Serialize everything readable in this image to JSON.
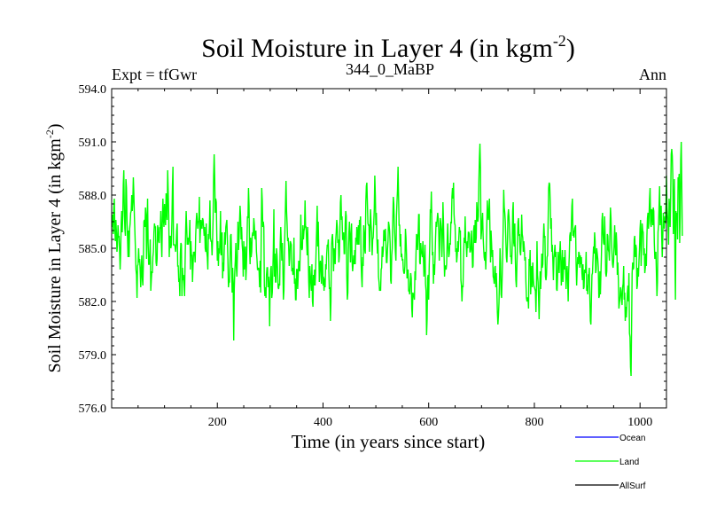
{
  "chart_data": {
    "type": "line",
    "title_main": "Soil Moisture in Layer 4 (in kgm",
    "title_sup": "-2",
    "title_close": ")",
    "subtitle_left": "Expt = tfGwr",
    "subtitle_center": "344_0_MaBP",
    "subtitle_right": "Ann",
    "xlabel": "Time (in years since start)",
    "ylabel_main": "Soil Moisture in Layer 4 (in kgm",
    "ylabel_sup": "-2",
    "ylabel_close": ")",
    "xlim": [
      0,
      1050
    ],
    "ylim": [
      576.0,
      594.0
    ],
    "xticks": [
      200,
      400,
      600,
      800,
      1000
    ],
    "yticks": [
      576.0,
      579.0,
      582.0,
      585.0,
      588.0,
      591.0,
      594.0
    ],
    "ytick_labels": [
      "576.0",
      "579.0",
      "582.0",
      "585.0",
      "588.0",
      "591.0",
      "594.0"
    ],
    "legend": [
      {
        "name": "Ocean",
        "color": "#0000ff"
      },
      {
        "name": "Land",
        "color": "#00ff00"
      },
      {
        "name": "AllSurf",
        "color": "#000000"
      }
    ],
    "series": [
      {
        "name": "Land",
        "color": "#00ff00",
        "note": "annual values; approx. mean 585, range ~577.8 to ~591",
        "x_start": 1,
        "x_step": 1,
        "values": [
          586.2,
          586.9,
          585.8,
          587.3,
          587.8,
          586.1,
          585.4,
          586.6,
          585.9,
          584.8,
          585.2,
          586.3,
          585.6,
          585.7,
          584.9,
          583.8,
          584.7,
          586.4,
          587.1,
          585.9,
          586.8,
          588.6,
          589.4,
          587.2,
          586.1,
          585.7,
          588.9,
          588.4,
          586.6,
          585.6,
          584.5,
          586.0,
          584.5,
          586.1,
          586.4,
          587.0,
          587.1,
          588.0,
          587.1,
          587.6,
          589.0,
          588.1,
          586.8,
          585.9,
          584.9,
          583.8,
          583.5,
          582.2,
          584.0,
          584.1,
          585.0,
          584.2,
          584.4,
          583.7,
          582.8,
          583.9,
          584.6,
          583.3,
          582.9,
          584.1,
          586.5,
          586.6,
          586.2,
          587.3,
          586.9,
          584.4,
          586.3,
          587.8,
          585.3,
          584.1,
          584.1,
          584.6,
          585.5,
          582.6,
          583.2,
          583.7,
          583.6,
          584.5,
          584.8,
          585.9,
          586.4,
          586.2,
          586.2,
          584.2,
          584.0,
          584.4,
          586.3,
          586.1,
          585.4,
          585.3,
          586.2,
          586.1,
          587.1,
          585.4,
          584.5,
          586.7,
          587.8,
          586.6,
          586.2,
          587.5,
          586.7,
          586.3,
          588.1,
          587.2,
          586.6,
          589.4,
          588.2,
          586.9,
          584.5,
          585.6,
          585.7,
          585.0,
          585.2,
          586.5,
          588.5,
          589.6,
          585.2,
          585.2,
          585.2,
          585.1,
          584.8,
          585.2,
          586.0,
          586.4,
          584.0,
          584.0,
          583.1,
          583.3,
          582.3,
          584.7,
          585.3,
          585.2,
          582.3,
          583.9,
          583.2,
          583.5,
          583.0,
          582.3,
          584.2,
          586.0,
          587.1,
          586.2,
          585.2,
          585.6,
          585.2,
          585.4,
          585.7,
          586.6,
          583.8,
          585.4,
          584.6,
          584.6,
          583.1,
          584.0,
          584.8,
          584.7,
          584.8,
          584.2,
          585.7,
          586.5,
          587.0,
          586.6,
          586.1,
          586.5,
          586.5,
          587.9,
          585.3,
          586.0,
          586.6,
          586.2,
          586.1,
          586.7,
          586.6,
          586.2,
          585.7,
          586.2,
          585.0,
          584.8,
          586.4,
          584.8,
          584.5,
          583.8,
          585.8,
          585.5,
          586.3,
          587.7,
          585.6,
          585.4,
          585.4,
          584.6,
          585.5,
          586.7,
          589.1,
          590.3,
          589.0,
          587.0,
          587.8,
          587.6,
          585.7,
          584.3,
          585.4,
          584.0,
          585.0,
          584.7,
          585.5,
          587.1,
          584.6,
          585.2,
          585.9,
          583.3,
          584.2,
          583.7,
          584.9,
          585.9,
          585.2,
          586.2,
          586.4,
          586.6,
          585.5,
          584.4,
          582.8,
          583.1,
          583.1,
          584.3,
          585.7,
          585.8,
          584.3,
          582.5,
          583.9,
          583.0,
          579.8,
          582.7,
          583.7,
          584.3,
          585.3,
          583.9,
          583.4,
          584.6,
          586.5,
          584.9,
          585.5,
          586.5,
          587.4,
          586.8,
          585.5,
          586.2,
          585.2,
          584.8,
          583.4,
          585.4,
          583.8,
          584.6,
          585.1,
          583.2,
          583.9,
          585.2,
          586.8,
          586.7,
          588.4,
          587.4,
          585.0,
          584.1,
          585.6,
          584.5,
          584.8,
          585.7,
          585.9,
          585.7,
          586.7,
          586.3,
          585.6,
          585.5,
          586.0,
          584.8,
          584.4,
          583.8,
          583.8,
          583.9,
          583.7,
          582.8,
          584.3,
          582.5,
          585.6,
          588.4,
          587.7,
          586.2,
          586.5,
          586.2,
          582.9,
          582.3,
          582.8,
          582.2,
          583.5,
          583.9,
          583.9,
          582.8,
          583.4,
          582.8,
          580.6,
          583.1,
          583.8,
          584.0,
          582.2,
          582.5,
          583.7,
          585.0,
          587.2,
          583.4,
          584.7,
          583.1,
          583.1,
          585.0,
          584.6,
          583.8,
          582.8,
          582.7,
          583.0,
          582.9,
          585.3,
          586.2,
          585.4,
          584.3,
          585.3,
          584.0,
          582.1,
          582.6,
          584.6,
          586.1,
          587.5,
          588.8,
          587.1,
          586.4,
          585.4,
          585.6,
          585.1,
          584.0,
          584.4,
          585.4,
          585.3,
          585.2,
          583.7,
          583.9,
          583.5,
          583.6,
          585.6,
          583.0,
          583.3,
          582.1,
          582.1,
          583.8,
          583.8,
          582.7,
          583.4,
          584.3,
          583.9,
          583.7,
          585.0,
          586.9,
          585.1,
          584.9,
          585.0,
          586.3,
          585.5,
          586.0,
          586.1,
          587.7,
          586.2,
          586.2,
          585.3,
          584.6,
          586.2,
          584.6,
          583.1,
          582.2,
          584.0,
          583.5,
          583.0,
          582.6,
          584.1,
          582.0,
          581.7,
          583.5,
          582.9,
          583.8,
          582.9,
          583.7,
          585.0,
          586.1,
          587.4,
          585.1,
          586.5,
          584.8,
          583.1,
          583.9,
          584.3,
          583.8,
          583.0,
          584.6,
          584.5,
          582.9,
          583.4,
          582.6,
          583.3,
          582.8,
          584.1,
          583.8,
          584.7,
          585.2,
          585.1,
          585.5,
          583.7,
          582.7,
          582.8,
          580.9,
          582.0,
          585.1,
          585.6,
          585.8,
          585.0,
          583.7,
          585.0,
          584.6,
          584.1,
          585.4,
          585.9,
          586.6,
          586.2,
          585.3,
          585.5,
          584.2,
          584.6,
          586.2,
          587.6,
          588.0,
          586.6,
          586.8,
          585.5,
          585.5,
          585.9,
          584.7,
          584.7,
          586.4,
          587.1,
          586.8,
          583.4,
          582.1,
          582.5,
          584.9,
          585.9,
          586.5,
          585.5,
          584.2,
          585.8,
          586.4,
          584.3,
          583.7,
          584.1,
          584.6,
          584.1,
          584.9,
          584.1,
          585.6,
          585.2,
          586.2,
          585.7,
          585.2,
          586.3,
          585.2,
          586.6,
          586.3,
          586.8,
          584.3,
          583.4,
          582.8,
          584.5,
          584.0,
          586.3,
          585.9,
          584.9,
          584.7,
          587.6,
          588.5,
          588.7,
          587.5,
          586.4,
          586.3,
          586.3,
          584.8,
          586.3,
          587.2,
          586.3,
          585.9,
          584.6,
          585.5,
          585.6,
          586.4,
          587.2,
          589.1,
          588.0,
          586.3,
          587.0,
          585.5,
          584.7,
          585.5,
          583.4,
          583.1,
          582.6,
          582.8,
          582.6,
          583.8,
          583.9,
          585.1,
          584.5,
          584.9,
          586.0,
          586.0,
          585.4,
          586.1,
          585.3,
          584.2,
          584.2,
          584.9,
          585.4,
          586.5,
          586.3,
          586.0,
          585.3,
          583.2,
          583.0,
          584.6,
          585.0,
          586.5,
          587.9,
          587.5,
          586.3,
          585.6,
          584.8,
          584.3,
          586.8,
          587.6,
          588.3,
          589.6,
          587.9,
          586.3,
          586.3,
          585.1,
          585.8,
          584.5,
          584.7,
          584.3,
          584.4,
          583.8,
          583.6,
          583.6,
          584.0,
          586.1,
          585.6,
          584.7,
          583.3,
          583.6,
          583.8,
          582.6,
          582.6,
          582.4,
          583.1,
          583.6,
          583.3,
          581.6,
          581.1,
          582.5,
          582.4,
          582.3,
          582.1,
          583.7,
          583.2,
          584.7,
          585.8,
          585.7,
          584.9,
          585.7,
          586.9,
          586.9,
          584.2,
          584.1,
          585.3,
          584.8,
          584.7,
          584.5,
          585.4,
          584.5,
          583.4,
          584.2,
          585.2,
          583.0,
          582.6,
          580.1,
          581.0,
          583.3,
          583.5,
          582.1,
          584.0,
          585.2,
          587.2,
          587.0,
          588.2,
          586.4,
          584.6,
          584.8,
          583.0,
          584.1,
          583.5,
          584.4,
          585.6,
          586.5,
          586.2,
          586.6,
          587.0,
          586.7,
          586.0,
          584.3,
          585.3,
          586.7,
          586.4,
          586.0,
          584.5,
          585.6,
          587.6,
          586.5,
          584.8,
          583.4,
          584.0,
          584.0,
          583.8,
          584.1,
          585.4,
          586.4,
          585.1,
          584.5,
          584.7,
          585.3,
          585.2,
          586.5,
          586.4,
          587.9,
          588.4,
          587.8,
          588.7,
          586.9,
          586.4,
          586.3,
          584.8,
          585.0,
          584.2,
          584.6,
          585.4,
          584.8,
          585.6,
          586.2,
          585.9,
          586.0,
          583.2,
          582.9,
          582.0,
          582.9,
          582.8,
          584.5,
          585.6,
          585.3,
          586.8,
          585.4,
          585.2,
          584.5,
          585.4,
          585.0,
          585.9,
          585.9,
          585.8,
          584.8,
          584.8,
          585.0,
          586.0,
          585.1,
          583.9,
          584.0,
          586.0,
          586.3,
          585.3,
          586.6,
          585.3,
          585.6,
          587.6,
          587.1,
          586.5,
          586.8,
          588.8,
          590.1,
          590.9,
          589.5,
          585.5,
          585.9,
          586.5,
          587.0,
          585.7,
          585.0,
          584.5,
          584.3,
          584.8,
          583.8,
          584.9,
          586.4,
          587.7,
          586.9,
          586.6,
          587.2,
          587.8,
          585.9,
          584.2,
          586.0,
          585.3,
          584.5,
          584.9,
          583.4,
          583.3,
          583.0,
          583.9,
          584.0,
          582.8,
          583.6,
          582.7,
          581.4,
          580.7,
          581.2,
          581.9,
          583.2,
          585.0,
          584.2,
          582.4,
          582.2,
          583.3,
          584.5,
          586.2,
          588.3,
          587.3,
          587.0,
          586.5,
          585.5,
          584.5,
          584.2,
          585.1,
          586.8,
          587.2,
          586.8,
          586.1,
          585.3,
          584.5,
          584.6,
          584.1,
          585.0,
          587.1,
          587.6,
          585.3,
          585.1,
          586.4,
          584.4,
          583.2,
          582.8,
          584.1,
          585.3,
          586.5,
          586.7,
          585.7,
          585.8,
          584.8,
          584.6,
          585.4,
          586.9,
          585.8,
          585.6,
          584.8,
          585.4,
          585.0,
          584.3,
          584.5,
          583.1,
          582.2,
          582.0,
          582.2,
          582.2,
          581.6,
          584.4,
          584.0,
          584.9,
          582.4,
          583.4,
          584.0,
          582.8,
          584.2,
          583.3,
          582.9,
          582.8,
          582.7,
          582.6,
          581.4,
          582.9,
          585.4,
          583.5,
          583.1,
          582.2,
          581.0,
          582.5,
          583.7,
          582.7,
          583.6,
          584.7,
          583.9,
          584.1,
          585.5,
          586.4,
          585.6,
          585.7,
          583.4,
          583.2,
          583.5,
          584.5,
          584.6,
          586.4,
          588.4,
          588.7,
          588.6,
          587.6,
          586.1,
          586.7,
          584.8,
          585.2,
          584.3,
          583.2,
          584.4,
          584.8,
          585.2,
          584.5,
          584.8,
          582.7,
          582.6,
          583.5,
          584.8,
          584.2,
          583.6,
          584.8,
          585.4,
          584.4,
          582.9,
          583.7,
          584.9,
          583.1,
          583.8,
          584.5,
          583.8,
          584.9,
          583.9,
          582.7,
          583.6,
          584.0,
          583.3,
          582.0,
          583.7,
          584.5,
          585.7,
          585.9,
          585.4,
          586.3,
          587.4,
          587.8,
          585.7,
          586.0,
          585.6,
          586.1,
          586.2,
          586.3,
          584.1,
          582.9,
          583.8,
          584.5,
          584.1,
          584.8,
          584.7,
          583.9,
          584.6,
          584.1,
          584.5,
          583.6,
          583.2,
          584.1,
          582.7,
          582.8,
          583.8,
          583.6,
          583.8,
          584.8,
          582.6,
          582.9,
          582.4,
          583.5,
          583.5,
          583.9,
          582.2,
          580.9,
          580.7,
          582.2,
          583.5,
          583.6,
          584.4,
          585.1,
          584.7,
          585.9,
          585.4,
          583.6,
          583.8,
          585.0,
          584.7,
          584.4,
          583.9,
          582.2,
          582.3,
          583.7,
          582.4,
          583.6,
          584.7,
          586.6,
          587.0,
          585.8,
          585.3,
          585.2,
          586.8,
          585.6,
          583.6,
          583.4,
          583.7,
          585.8,
          585.7,
          584.9,
          584.8,
          584.3,
          585.9,
          587.3,
          586.7,
          585.5,
          584.7,
          584.1,
          583.9,
          584.3,
          585.4,
          586.3,
          585.1,
          584.6,
          585.9,
          585.2,
          583.5,
          584.2,
          583.2,
          581.6,
          581.9,
          582.2,
          582.8,
          582.6,
          582.1,
          581.8,
          582.8,
          583.0,
          584.0,
          582.1,
          582.5,
          580.9,
          581.7,
          581.1,
          581.8,
          582.5,
          582.9,
          582.0,
          583.6,
          580.2,
          580.0,
          578.3,
          577.8,
          580.6,
          583.6,
          584.2,
          583.8,
          583.9,
          585.5,
          585.7,
          584.5,
          585.2,
          585.0,
          582.7,
          582.9,
          583.9,
          583.4,
          584.3,
          585.0,
          586.1,
          586.6,
          584.0,
          585.2,
          586.4,
          586.0,
          585.9,
          584.6,
          585.0,
          583.6,
          583.9,
          584.7,
          584.0,
          585.7,
          586.7,
          587.0,
          586.1,
          586.8,
          587.8,
          588.4,
          586.4,
          586.2,
          587.2,
          587.1,
          586.3,
          587.3,
          587.1,
          585.3,
          584.4,
          584.6,
          584.8,
          583.6,
          582.3,
          583.1,
          585.9,
          586.3,
          587.4,
          588.5,
          586.3,
          587.2,
          587.4,
          585.7,
          584.5,
          585.6,
          587.0,
          586.4,
          586.1,
          586.8,
          586.4,
          587.4,
          589.1,
          587.3,
          586.8,
          586.4,
          585.2,
          587.8,
          587.2,
          586.2,
          588.0,
          590.3,
          590.6,
          590.2,
          589.1,
          585.8,
          587.0,
          588.9,
          584.6,
          582.1,
          587.1,
          586.6,
          587.0,
          585.5,
          589.0,
          588.7,
          589.2,
          585.3,
          586.8,
          590.0,
          591.0,
          588.5,
          585.7
        ]
      }
    ]
  }
}
